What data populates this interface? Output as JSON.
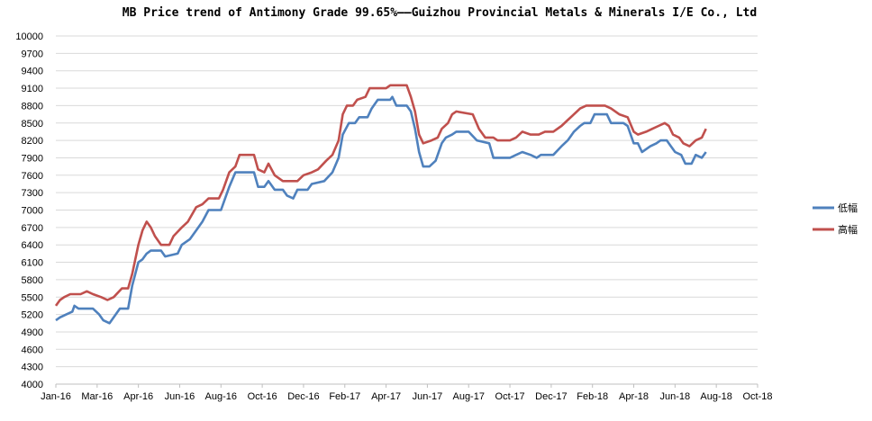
{
  "chart_data": {
    "type": "line",
    "title": "MB Price trend of Antimony Grade 99.65%——Guizhou Provincial Metals & Minerals I/E Co., Ltd",
    "xlabel": "",
    "ylabel": "",
    "ylim": [
      4000,
      10000
    ],
    "yticks": [
      4000,
      4300,
      4600,
      4900,
      5200,
      5500,
      5800,
      6100,
      6400,
      6700,
      7000,
      7300,
      7600,
      7900,
      8200,
      8500,
      8800,
      9100,
      9400,
      9700,
      10000
    ],
    "xticks": [
      "Jan-16",
      "Mar-16",
      "Apr-16",
      "Jun-16",
      "Aug-16",
      "Oct-16",
      "Dec-16",
      "Feb-17",
      "Apr-17",
      "Jun-17",
      "Aug-17",
      "Oct-17",
      "Dec-17",
      "Feb-18",
      "Apr-18",
      "Jun-18",
      "Aug-18",
      "Oct-18"
    ],
    "grid": true,
    "legend_position": "right",
    "series": [
      {
        "name": "低幅",
        "color": "#4F81BD",
        "points": [
          [
            0,
            5100
          ],
          [
            0.1,
            5150
          ],
          [
            0.25,
            5200
          ],
          [
            0.4,
            5250
          ],
          [
            0.45,
            5350
          ],
          [
            0.55,
            5300
          ],
          [
            0.9,
            5300
          ],
          [
            1.05,
            5200
          ],
          [
            1.15,
            5100
          ],
          [
            1.3,
            5050
          ],
          [
            1.4,
            5150
          ],
          [
            1.55,
            5300
          ],
          [
            1.75,
            5300
          ],
          [
            1.85,
            5700
          ],
          [
            2.0,
            6100
          ],
          [
            2.1,
            6150
          ],
          [
            2.2,
            6250
          ],
          [
            2.3,
            6300
          ],
          [
            2.55,
            6300
          ],
          [
            2.65,
            6200
          ],
          [
            2.95,
            6250
          ],
          [
            3.05,
            6400
          ],
          [
            3.25,
            6500
          ],
          [
            3.4,
            6650
          ],
          [
            3.55,
            6800
          ],
          [
            3.7,
            7000
          ],
          [
            4.0,
            7000
          ],
          [
            4.1,
            7200
          ],
          [
            4.2,
            7400
          ],
          [
            4.35,
            7650
          ],
          [
            4.8,
            7650
          ],
          [
            4.9,
            7400
          ],
          [
            5.05,
            7400
          ],
          [
            5.15,
            7500
          ],
          [
            5.3,
            7350
          ],
          [
            5.5,
            7350
          ],
          [
            5.6,
            7250
          ],
          [
            5.75,
            7200
          ],
          [
            5.85,
            7350
          ],
          [
            6.1,
            7350
          ],
          [
            6.2,
            7450
          ],
          [
            6.5,
            7500
          ],
          [
            6.7,
            7650
          ],
          [
            6.85,
            7900
          ],
          [
            6.95,
            8300
          ],
          [
            7.1,
            8500
          ],
          [
            7.25,
            8500
          ],
          [
            7.35,
            8600
          ],
          [
            7.55,
            8600
          ],
          [
            7.65,
            8750
          ],
          [
            7.8,
            8900
          ],
          [
            8.1,
            8900
          ],
          [
            8.15,
            8950
          ],
          [
            8.25,
            8800
          ],
          [
            8.5,
            8800
          ],
          [
            8.6,
            8700
          ],
          [
            8.7,
            8400
          ],
          [
            8.8,
            8000
          ],
          [
            8.9,
            7750
          ],
          [
            9.05,
            7750
          ],
          [
            9.2,
            7850
          ],
          [
            9.35,
            8150
          ],
          [
            9.45,
            8250
          ],
          [
            9.6,
            8300
          ],
          [
            9.7,
            8350
          ],
          [
            10.0,
            8350
          ],
          [
            10.2,
            8200
          ],
          [
            10.5,
            8150
          ],
          [
            10.6,
            7900
          ],
          [
            11.0,
            7900
          ],
          [
            11.15,
            7950
          ],
          [
            11.3,
            8000
          ],
          [
            11.5,
            7950
          ],
          [
            11.65,
            7900
          ],
          [
            11.75,
            7950
          ],
          [
            12.05,
            7950
          ],
          [
            12.25,
            8100
          ],
          [
            12.4,
            8200
          ],
          [
            12.55,
            8350
          ],
          [
            12.7,
            8450
          ],
          [
            12.8,
            8500
          ],
          [
            12.95,
            8500
          ],
          [
            13.05,
            8650
          ],
          [
            13.35,
            8650
          ],
          [
            13.45,
            8500
          ],
          [
            13.75,
            8500
          ],
          [
            13.85,
            8450
          ],
          [
            14.0,
            8150
          ],
          [
            14.1,
            8150
          ],
          [
            14.2,
            8000
          ],
          [
            14.4,
            8100
          ],
          [
            14.55,
            8150
          ],
          [
            14.65,
            8200
          ],
          [
            14.8,
            8200
          ],
          [
            14.9,
            8100
          ],
          [
            15.0,
            8000
          ],
          [
            15.15,
            7950
          ],
          [
            15.25,
            7800
          ],
          [
            15.4,
            7800
          ],
          [
            15.5,
            7950
          ],
          [
            15.65,
            7900
          ],
          [
            15.75,
            8000
          ]
        ]
      },
      {
        "name": "高幅",
        "color": "#C0504D",
        "points": [
          [
            0,
            5350
          ],
          [
            0.1,
            5450
          ],
          [
            0.2,
            5500
          ],
          [
            0.35,
            5550
          ],
          [
            0.6,
            5550
          ],
          [
            0.75,
            5600
          ],
          [
            0.9,
            5550
          ],
          [
            1.1,
            5500
          ],
          [
            1.25,
            5450
          ],
          [
            1.4,
            5500
          ],
          [
            1.6,
            5650
          ],
          [
            1.75,
            5650
          ],
          [
            1.85,
            5900
          ],
          [
            2.0,
            6400
          ],
          [
            2.1,
            6650
          ],
          [
            2.2,
            6800
          ],
          [
            2.3,
            6700
          ],
          [
            2.4,
            6550
          ],
          [
            2.55,
            6400
          ],
          [
            2.75,
            6400
          ],
          [
            2.85,
            6550
          ],
          [
            3.05,
            6700
          ],
          [
            3.2,
            6800
          ],
          [
            3.4,
            7050
          ],
          [
            3.55,
            7100
          ],
          [
            3.7,
            7200
          ],
          [
            3.95,
            7200
          ],
          [
            4.05,
            7350
          ],
          [
            4.2,
            7650
          ],
          [
            4.35,
            7750
          ],
          [
            4.45,
            7950
          ],
          [
            4.8,
            7950
          ],
          [
            4.9,
            7700
          ],
          [
            5.05,
            7650
          ],
          [
            5.15,
            7800
          ],
          [
            5.3,
            7600
          ],
          [
            5.5,
            7500
          ],
          [
            5.85,
            7500
          ],
          [
            6.0,
            7600
          ],
          [
            6.2,
            7650
          ],
          [
            6.35,
            7700
          ],
          [
            6.55,
            7850
          ],
          [
            6.7,
            7950
          ],
          [
            6.85,
            8200
          ],
          [
            6.95,
            8650
          ],
          [
            7.05,
            8800
          ],
          [
            7.2,
            8800
          ],
          [
            7.3,
            8900
          ],
          [
            7.5,
            8950
          ],
          [
            7.6,
            9100
          ],
          [
            8.0,
            9100
          ],
          [
            8.1,
            9150
          ],
          [
            8.5,
            9150
          ],
          [
            8.6,
            8950
          ],
          [
            8.7,
            8700
          ],
          [
            8.8,
            8300
          ],
          [
            8.9,
            8150
          ],
          [
            9.1,
            8200
          ],
          [
            9.25,
            8250
          ],
          [
            9.35,
            8400
          ],
          [
            9.5,
            8500
          ],
          [
            9.6,
            8650
          ],
          [
            9.7,
            8700
          ],
          [
            10.1,
            8650
          ],
          [
            10.25,
            8400
          ],
          [
            10.4,
            8250
          ],
          [
            10.6,
            8250
          ],
          [
            10.7,
            8200
          ],
          [
            11.0,
            8200
          ],
          [
            11.15,
            8250
          ],
          [
            11.3,
            8350
          ],
          [
            11.5,
            8300
          ],
          [
            11.7,
            8300
          ],
          [
            11.85,
            8350
          ],
          [
            12.05,
            8350
          ],
          [
            12.25,
            8450
          ],
          [
            12.4,
            8550
          ],
          [
            12.55,
            8650
          ],
          [
            12.7,
            8750
          ],
          [
            12.85,
            8800
          ],
          [
            13.3,
            8800
          ],
          [
            13.45,
            8750
          ],
          [
            13.65,
            8650
          ],
          [
            13.85,
            8600
          ],
          [
            14.0,
            8350
          ],
          [
            14.1,
            8300
          ],
          [
            14.3,
            8350
          ],
          [
            14.45,
            8400
          ],
          [
            14.6,
            8450
          ],
          [
            14.75,
            8500
          ],
          [
            14.85,
            8450
          ],
          [
            14.95,
            8300
          ],
          [
            15.1,
            8250
          ],
          [
            15.2,
            8150
          ],
          [
            15.35,
            8100
          ],
          [
            15.5,
            8200
          ],
          [
            15.65,
            8250
          ],
          [
            15.75,
            8400
          ]
        ]
      }
    ]
  }
}
